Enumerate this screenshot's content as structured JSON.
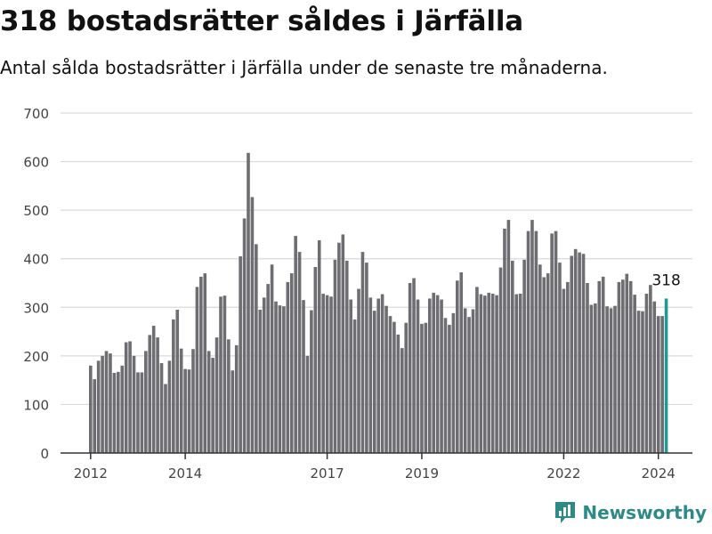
{
  "header": {
    "title": "318 bostadsrätter såldes i Järfälla",
    "subtitle": "Antal sålda bostadsrätter i Järfälla under de senaste tre månaderna."
  },
  "brand": {
    "name": "Newsworthy",
    "icon": "newsworthy-logo-icon"
  },
  "colors": {
    "bar": "#6e6d71",
    "highlight": "#1e9a95",
    "grid": "#d9d9d9",
    "axis": "#333333",
    "brand": "#2d8a87"
  },
  "chart_data": {
    "type": "bar",
    "ylim": [
      0,
      700
    ],
    "yticks": [
      "0",
      "100",
      "200",
      "300",
      "400",
      "500",
      "600",
      "700"
    ],
    "xticks": [
      "2012",
      "2014",
      "2017",
      "2019",
      "2022",
      "2024"
    ],
    "highlight_label": "318",
    "grid": true,
    "values": [
      180,
      152,
      190,
      200,
      210,
      205,
      165,
      167,
      180,
      228,
      230,
      200,
      166,
      166,
      210,
      243,
      262,
      238,
      185,
      142,
      190,
      275,
      295,
      215,
      173,
      172,
      214,
      342,
      363,
      370,
      210,
      196,
      238,
      322,
      324,
      234,
      170,
      222,
      405,
      483,
      618,
      527,
      430,
      295,
      320,
      348,
      388,
      312,
      304,
      302,
      352,
      370,
      447,
      414,
      315,
      200,
      294,
      383,
      438,
      328,
      325,
      322,
      398,
      433,
      450,
      396,
      316,
      275,
      338,
      414,
      392,
      320,
      293,
      318,
      327,
      303,
      282,
      270,
      244,
      216,
      268,
      350,
      360,
      316,
      266,
      268,
      318,
      330,
      325,
      316,
      278,
      264,
      288,
      355,
      372,
      298,
      280,
      296,
      342,
      327,
      324,
      330,
      328,
      325,
      382,
      462,
      480,
      396,
      327,
      328,
      398,
      457,
      480,
      457,
      388,
      362,
      370,
      452,
      457,
      392,
      338,
      352,
      406,
      420,
      413,
      410,
      350,
      305,
      308,
      354,
      363,
      302,
      298,
      303,
      352,
      357,
      369,
      354,
      326,
      293,
      292,
      328,
      346,
      312,
      282,
      282,
      318
    ]
  }
}
